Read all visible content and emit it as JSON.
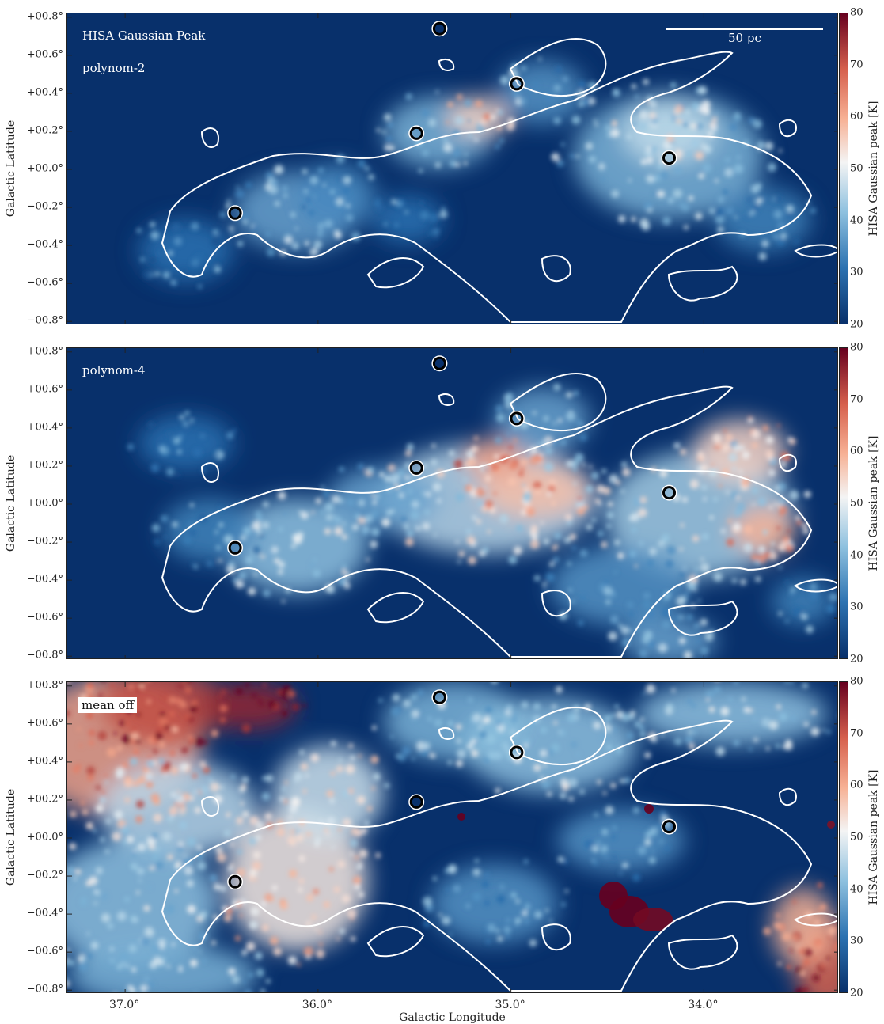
{
  "chart_data": [
    {
      "type": "heatmap",
      "label": "HISA Gaussian Peak",
      "sublabel": "polynom-2",
      "scalebar": "50 pc",
      "xlabel": "",
      "ylabel": "Galactic Latitude",
      "xlim": [
        37.3,
        33.3
      ],
      "ylim": [
        -0.82,
        0.82
      ],
      "colorbar": {
        "label": "HISA Gaussian peak [K]",
        "range": [
          20,
          80
        ],
        "ticks": [
          "20",
          "30",
          "40",
          "50",
          "60",
          "70",
          "80"
        ],
        "colormap": "RdBu_r"
      },
      "markers": [
        {
          "l": 35.37,
          "b": 0.74
        },
        {
          "l": 34.97,
          "b": 0.45
        },
        {
          "l": 35.49,
          "b": 0.19
        },
        {
          "l": 34.18,
          "b": 0.06
        },
        {
          "l": 36.43,
          "b": -0.23
        }
      ],
      "background_level": 20
    },
    {
      "type": "heatmap",
      "label": "polynom-4",
      "xlabel": "",
      "ylabel": "Galactic Latitude",
      "xlim": [
        37.3,
        33.3
      ],
      "ylim": [
        -0.82,
        0.82
      ],
      "colorbar": {
        "label": "HISA Gaussian peak [K]",
        "range": [
          20,
          80
        ],
        "ticks": [
          "20",
          "30",
          "40",
          "50",
          "60",
          "70",
          "80"
        ],
        "colormap": "RdBu_r"
      },
      "markers": [
        {
          "l": 35.37,
          "b": 0.74
        },
        {
          "l": 34.97,
          "b": 0.45
        },
        {
          "l": 35.49,
          "b": 0.19
        },
        {
          "l": 34.18,
          "b": 0.06
        },
        {
          "l": 36.43,
          "b": -0.23
        }
      ],
      "background_level": 20
    },
    {
      "type": "heatmap",
      "label": "mean off",
      "xlabel": "Galactic Longitude",
      "ylabel": "Galactic Latitude",
      "xlim": [
        37.3,
        33.3
      ],
      "ylim": [
        -0.82,
        0.82
      ],
      "colorbar": {
        "label": "HISA Gaussian peak [K]",
        "range": [
          20,
          80
        ],
        "ticks": [
          "20",
          "30",
          "40",
          "50",
          "60",
          "70",
          "80"
        ],
        "colormap": "RdBu_r"
      },
      "markers": [
        {
          "l": 35.37,
          "b": 0.74
        },
        {
          "l": 34.97,
          "b": 0.45
        },
        {
          "l": 35.49,
          "b": 0.19
        },
        {
          "l": 34.18,
          "b": 0.06
        },
        {
          "l": 36.43,
          "b": -0.23
        }
      ],
      "background_level": 20
    }
  ],
  "axes": {
    "yticks": [
      "+00.8°",
      "+00.6°",
      "+00.4°",
      "+00.2°",
      "+00.0°",
      "−00.2°",
      "−00.4°",
      "−00.6°",
      "−00.8°"
    ],
    "ytick_values": [
      0.8,
      0.6,
      0.4,
      0.2,
      0.0,
      -0.2,
      -0.4,
      -0.6,
      -0.8
    ],
    "xticks": [
      "37.0°",
      "36.0°",
      "35.0°",
      "34.0°"
    ],
    "xtick_values": [
      37.0,
      36.0,
      35.0,
      34.0
    ]
  },
  "colors": {
    "background": "#0b3a6f",
    "contour": "#ffffff",
    "marker": "#000000"
  }
}
